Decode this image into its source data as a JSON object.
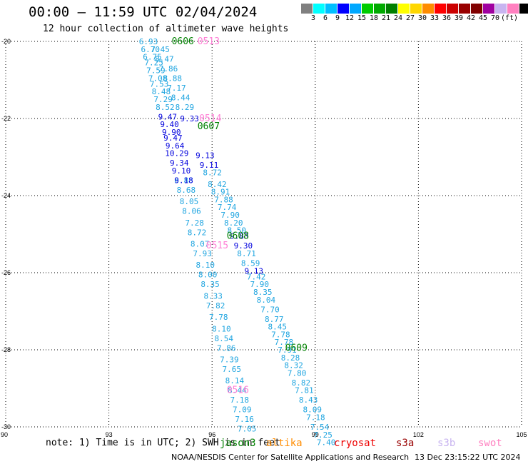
{
  "title": "00:00 – 11:59 UTC 02/04/2024",
  "subtitle": "12 hour collection of altimeter wave heights",
  "legend": {
    "colors": [
      "#808080",
      "#00ffff",
      "#00bfff",
      "#0000ff",
      "#00a8ff",
      "#00cc00",
      "#00aa00",
      "#008000",
      "#ffff00",
      "#ffd700",
      "#ff8c00",
      "#ff0000",
      "#cc0000",
      "#990000",
      "#800000",
      "#a000a0",
      "#c8b4f0",
      "#ff80c0",
      "#000000"
    ],
    "labels": [
      "3",
      "6",
      "9",
      "12",
      "15",
      "18",
      "21",
      "24",
      "27",
      "30",
      "33",
      "36",
      "39",
      "42",
      "45",
      "70",
      "(ft)"
    ]
  },
  "axes": {
    "x_ticks": [
      "90",
      "93",
      "96",
      "99",
      "102",
      "105"
    ],
    "y_ticks": [
      "-20",
      "-22",
      "-24",
      "-26",
      "-28",
      "-30"
    ]
  },
  "track_a": [
    {
      "lat": -20.0,
      "v": "6.93"
    },
    {
      "lat": -20.2,
      "v": "6.70"
    },
    {
      "lat": -20.4,
      "v": "6.75"
    },
    {
      "lat": -20.55,
      "v": "7.25"
    },
    {
      "lat": -20.75,
      "v": "7.59"
    },
    {
      "lat": -20.95,
      "v": "7.08"
    },
    {
      "lat": -21.1,
      "v": "7.53"
    },
    {
      "lat": -21.3,
      "v": "8.48"
    },
    {
      "lat": -21.5,
      "v": "7.29"
    },
    {
      "lat": -21.7,
      "v": "8.52"
    },
    {
      "lat": -23.6,
      "v": "8.88"
    },
    {
      "lat": -23.85,
      "v": "8.68"
    },
    {
      "lat": -24.15,
      "v": "8.05"
    },
    {
      "lat": -24.4,
      "v": "8.06"
    },
    {
      "lat": -24.7,
      "v": "7.28"
    },
    {
      "lat": -24.95,
      "v": "8.72"
    },
    {
      "lat": -25.25,
      "v": "8.07"
    },
    {
      "lat": -25.5,
      "v": "7.93"
    },
    {
      "lat": -25.8,
      "v": "8.10"
    },
    {
      "lat": -26.05,
      "v": "8.00"
    },
    {
      "lat": -26.3,
      "v": "8.35"
    },
    {
      "lat": -26.6,
      "v": "8.33"
    },
    {
      "lat": -26.85,
      "v": "7.82"
    },
    {
      "lat": -27.15,
      "v": "7.78"
    },
    {
      "lat": -27.45,
      "v": "8.10"
    },
    {
      "lat": -27.7,
      "v": "8.54"
    },
    {
      "lat": -27.95,
      "v": "7.86"
    },
    {
      "lat": -28.25,
      "v": "7.39"
    },
    {
      "lat": -28.5,
      "v": "7.65"
    },
    {
      "lat": -28.8,
      "v": "8.14"
    },
    {
      "lat": -29.05,
      "v": "8.44"
    },
    {
      "lat": -29.3,
      "v": "7.18"
    },
    {
      "lat": -29.55,
      "v": "7.09"
    },
    {
      "lat": -29.8,
      "v": "7.16"
    },
    {
      "lat": -30.05,
      "v": "7.05"
    }
  ],
  "track_a_dark": [
    {
      "lat": -21.95,
      "v": "9.47"
    },
    {
      "lat": -22.15,
      "v": "9.40"
    },
    {
      "lat": -22.35,
      "v": "9.90"
    },
    {
      "lat": -22.5,
      "v": "9.47"
    },
    {
      "lat": -22.7,
      "v": "9.64"
    },
    {
      "lat": -22.9,
      "v": "10.29"
    },
    {
      "lat": -23.15,
      "v": "9.34"
    },
    {
      "lat": -23.35,
      "v": "9.10"
    },
    {
      "lat": -23.6,
      "v": "9.18"
    }
  ],
  "track_b": [
    {
      "lat": -20.2,
      "v": "7.45"
    },
    {
      "lat": -20.45,
      "v": "8.47"
    },
    {
      "lat": -20.7,
      "v": "7.86"
    },
    {
      "lat": -20.95,
      "v": "8.88"
    },
    {
      "lat": -21.2,
      "v": "7.17"
    },
    {
      "lat": -21.45,
      "v": "8.44"
    },
    {
      "lat": -21.7,
      "v": "8.29"
    },
    {
      "lat": -23.4,
      "v": "8.72"
    },
    {
      "lat": -23.7,
      "v": "8.42"
    },
    {
      "lat": -23.9,
      "v": "8.91"
    },
    {
      "lat": -24.1,
      "v": "7.88"
    },
    {
      "lat": -24.3,
      "v": "7.74"
    },
    {
      "lat": -24.5,
      "v": "7.90"
    },
    {
      "lat": -24.7,
      "v": "8.20"
    },
    {
      "lat": -24.9,
      "v": "8.50"
    },
    {
      "lat": -25.5,
      "v": "8.71"
    },
    {
      "lat": -25.75,
      "v": "8.59"
    },
    {
      "lat": -26.1,
      "v": "7.42"
    },
    {
      "lat": -26.3,
      "v": "7.90"
    },
    {
      "lat": -26.5,
      "v": "8.35"
    },
    {
      "lat": -26.7,
      "v": "8.04"
    },
    {
      "lat": -26.95,
      "v": "7.70"
    },
    {
      "lat": -27.2,
      "v": "8.77"
    },
    {
      "lat": -27.4,
      "v": "8.45"
    },
    {
      "lat": -27.6,
      "v": "7.78"
    },
    {
      "lat": -27.8,
      "v": "7.78"
    },
    {
      "lat": -28.0,
      "v": "7.91"
    },
    {
      "lat": -28.2,
      "v": "8.28"
    },
    {
      "lat": -28.4,
      "v": "8.32"
    },
    {
      "lat": -28.6,
      "v": "7.80"
    },
    {
      "lat": -28.85,
      "v": "8.82"
    },
    {
      "lat": -29.05,
      "v": "7.81"
    },
    {
      "lat": -29.3,
      "v": "8.43"
    },
    {
      "lat": -29.55,
      "v": "8.09"
    },
    {
      "lat": -29.75,
      "v": "7.18"
    },
    {
      "lat": -30.0,
      "v": "7.54"
    },
    {
      "lat": -30.2,
      "v": "7.25"
    },
    {
      "lat": -30.4,
      "v": "7.40"
    }
  ],
  "track_b_dark": [
    {
      "lat": -22.0,
      "v": "9.33"
    },
    {
      "lat": -22.95,
      "v": "9.13"
    },
    {
      "lat": -23.2,
      "v": "9.11"
    },
    {
      "lat": -25.05,
      "v": "9.83"
    },
    {
      "lat": -25.3,
      "v": "9.30"
    },
    {
      "lat": -25.95,
      "v": "9.13"
    }
  ],
  "time_labels": [
    {
      "lon": 95.15,
      "lat": -20.0,
      "text": "0606",
      "kind": "green"
    },
    {
      "lon": 95.9,
      "lat": -20.0,
      "text": "0513",
      "kind": "pink"
    },
    {
      "lon": 95.95,
      "lat": -22.0,
      "text": "0514",
      "kind": "pink"
    },
    {
      "lon": 95.9,
      "lat": -22.2,
      "text": "0607",
      "kind": "green"
    },
    {
      "lon": 96.75,
      "lat": -25.05,
      "text": "0608",
      "kind": "green"
    },
    {
      "lon": 96.15,
      "lat": -25.3,
      "text": "0515",
      "kind": "pink"
    },
    {
      "lon": 98.45,
      "lat": -27.95,
      "text": "0609",
      "kind": "green"
    },
    {
      "lon": 96.75,
      "lat": -29.05,
      "text": "0516",
      "kind": "pink"
    }
  ],
  "colors": {
    "light_blue": "#1fa5e0",
    "dark_blue": "#0000dd",
    "green": "#008000",
    "pink": "#ff7fd6"
  },
  "note": "note: 1) Time is in UTC; 2) SWH is in feet",
  "satellites": [
    {
      "name": "jason3",
      "color": "#008000"
    },
    {
      "name": "altika",
      "color": "#ff8c00"
    },
    {
      "name": "cryosat",
      "color": "#ee0000"
    },
    {
      "name": "s3a",
      "color": "#990000"
    },
    {
      "name": "s3b",
      "color": "#c8b4f0"
    },
    {
      "name": "swot",
      "color": "#ff80c0"
    }
  ],
  "credit": "NOAA/NESDIS Center for Satellite Applications and Research",
  "stamp": "13 Dec 23:15:22 UTC 2024"
}
